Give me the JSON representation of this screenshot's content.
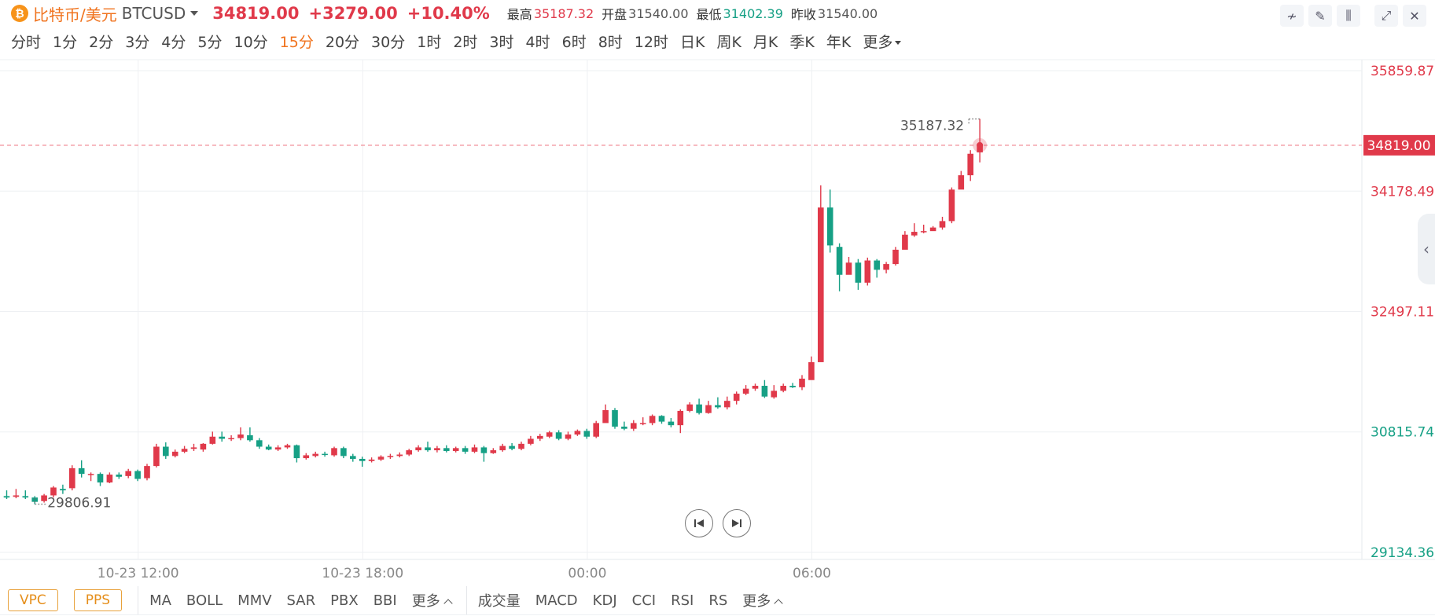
{
  "header": {
    "coin_icon": "bitcoin-icon",
    "coin_glyph": "₿",
    "pair_name": "比特币/美元",
    "pair_code": "BTCUSD",
    "last_price": "34819.00",
    "change": "+3279.00",
    "change_pct": "+10.40%",
    "high_label": "最高",
    "high": "35187.32",
    "open_label": "开盘",
    "open": "31540.00",
    "low_label": "最低",
    "low": "31402.39",
    "prev_close_label": "昨收",
    "prev_close": "31540.00"
  },
  "toolbar": {
    "tools": [
      {
        "name": "line-tool-icon",
        "glyph": "≁"
      },
      {
        "name": "pencil-icon",
        "glyph": "✎"
      },
      {
        "name": "candlestick-icon",
        "glyph": "⫼"
      }
    ],
    "window": [
      {
        "name": "expand-icon",
        "glyph": "⤢"
      },
      {
        "name": "close-icon",
        "glyph": "✕"
      }
    ]
  },
  "periods": [
    "分时",
    "1分",
    "2分",
    "3分",
    "4分",
    "5分",
    "10分",
    "15分",
    "20分",
    "30分",
    "1时",
    "2时",
    "3时",
    "4时",
    "6时",
    "8时",
    "12时",
    "日K",
    "周K",
    "月K",
    "季K",
    "年K"
  ],
  "active_period": "15分",
  "more_label": "更多",
  "colors": {
    "up": "#e0394a",
    "down": "#16a085",
    "accent": "#f0731e",
    "grid": "#eef0f3"
  },
  "indicators": {
    "pills": [
      "VPC",
      "PPS"
    ],
    "main": [
      "MA",
      "BOLL",
      "MMV",
      "SAR",
      "PBX",
      "BBI"
    ],
    "main_more": "更多",
    "sub": [
      "成交量",
      "MACD",
      "KDJ",
      "CCI",
      "RSI",
      "RS"
    ],
    "sub_more": "更多"
  },
  "chart_data": {
    "type": "candlestick",
    "y_ticks": [
      "35859.87",
      "34178.49",
      "32497.11",
      "30815.74",
      "29134.36"
    ],
    "y_tick_values": [
      35859.87,
      34178.49,
      32497.11,
      30815.74,
      29134.36
    ],
    "ylim": [
      29134.36,
      35859.87
    ],
    "x_ticks": [
      "10-23 12:00",
      "10-23 18:00",
      "00:00",
      "06:00"
    ],
    "x_tick_index": [
      14,
      38,
      62,
      86
    ],
    "current_price": "34819.00",
    "current_value": 34819.0,
    "max_label": "35187.32",
    "max_value": 35187.32,
    "min_label": "29806.91",
    "min_value": 29806.91,
    "grid": true,
    "candles": [
      [
        29920,
        29900,
        30000,
        29880
      ],
      [
        29910,
        29930,
        30020,
        29890
      ],
      [
        29920,
        29900,
        30000,
        29880
      ],
      [
        29900,
        29840,
        29920,
        29806.91
      ],
      [
        29850,
        29930,
        29950,
        29830
      ],
      [
        29930,
        30040,
        30060,
        29900
      ],
      [
        30020,
        30000,
        30080,
        29950
      ],
      [
        30030,
        30310,
        30350,
        30000
      ],
      [
        30310,
        30230,
        30420,
        30180
      ],
      [
        30230,
        30230,
        30250,
        30130
      ],
      [
        30230,
        30110,
        30250,
        30060
      ],
      [
        30110,
        30220,
        30250,
        30100
      ],
      [
        30220,
        30190,
        30250,
        30160
      ],
      [
        30200,
        30270,
        30300,
        30170
      ],
      [
        30270,
        30160,
        30290,
        30130
      ],
      [
        30170,
        30340,
        30370,
        30140
      ],
      [
        30340,
        30610,
        30650,
        30320
      ],
      [
        30610,
        30480,
        30670,
        30440
      ],
      [
        30480,
        30540,
        30570,
        30460
      ],
      [
        30540,
        30580,
        30620,
        30520
      ],
      [
        30580,
        30600,
        30650,
        30550
      ],
      [
        30570,
        30650,
        30660,
        30540
      ],
      [
        30650,
        30750,
        30820,
        30640
      ],
      [
        30750,
        30720,
        30820,
        30680
      ],
      [
        30720,
        30730,
        30770,
        30690
      ],
      [
        30730,
        30780,
        30880,
        30700
      ],
      [
        30770,
        30700,
        30880,
        30680
      ],
      [
        30700,
        30610,
        30730,
        30580
      ],
      [
        30610,
        30570,
        30640,
        30560
      ],
      [
        30570,
        30600,
        30630,
        30550
      ],
      [
        30600,
        30630,
        30650,
        30580
      ],
      [
        30630,
        30450,
        30640,
        30390
      ],
      [
        30450,
        30490,
        30520,
        30430
      ],
      [
        30480,
        30510,
        30540,
        30460
      ],
      [
        30510,
        30500,
        30540,
        30470
      ],
      [
        30490,
        30590,
        30610,
        30470
      ],
      [
        30590,
        30480,
        30610,
        30450
      ],
      [
        30480,
        30440,
        30510,
        30400
      ],
      [
        30440,
        30410,
        30470,
        30330
      ],
      [
        30410,
        30430,
        30460,
        30390
      ],
      [
        30430,
        30470,
        30490,
        30410
      ],
      [
        30470,
        30480,
        30510,
        30440
      ],
      [
        30480,
        30500,
        30530,
        30460
      ],
      [
        30500,
        30560,
        30580,
        30480
      ],
      [
        30560,
        30600,
        30630,
        30540
      ],
      [
        30600,
        30560,
        30680,
        30540
      ],
      [
        30560,
        30590,
        30620,
        30530
      ],
      [
        30590,
        30550,
        30630,
        30530
      ],
      [
        30550,
        30590,
        30610,
        30530
      ],
      [
        30590,
        30540,
        30620,
        30510
      ],
      [
        30540,
        30600,
        30640,
        30520
      ],
      [
        30600,
        30520,
        30620,
        30400
      ],
      [
        30520,
        30560,
        30590,
        30510
      ],
      [
        30560,
        30620,
        30650,
        30540
      ],
      [
        30620,
        30580,
        30660,
        30560
      ],
      [
        30580,
        30650,
        30680,
        30560
      ],
      [
        30650,
        30720,
        30760,
        30630
      ],
      [
        30720,
        30760,
        30790,
        30690
      ],
      [
        30750,
        30810,
        30830,
        30730
      ],
      [
        30810,
        30720,
        30840,
        30700
      ],
      [
        30720,
        30780,
        30820,
        30700
      ],
      [
        30780,
        30830,
        30850,
        30760
      ],
      [
        30830,
        30750,
        30860,
        30720
      ],
      [
        30750,
        30940,
        30970,
        30730
      ],
      [
        30940,
        31120,
        31200,
        31060
      ],
      [
        31120,
        30890,
        31150,
        30860
      ],
      [
        30890,
        30860,
        30960,
        30840
      ],
      [
        30860,
        30940,
        30980,
        30830
      ],
      [
        30940,
        30940,
        31020,
        30910
      ],
      [
        30940,
        31040,
        31060,
        30910
      ],
      [
        31040,
        30960,
        31050,
        30930
      ],
      [
        30960,
        30910,
        31010,
        30880
      ],
      [
        30910,
        31110,
        31130,
        30800
      ],
      [
        31110,
        31200,
        31230,
        31090
      ],
      [
        31200,
        31080,
        31280,
        31060
      ],
      [
        31080,
        31190,
        31250,
        31070
      ],
      [
        31190,
        31160,
        31300,
        31140
      ],
      [
        31160,
        31250,
        31310,
        31130
      ],
      [
        31250,
        31350,
        31380,
        31200
      ],
      [
        31350,
        31420,
        31470,
        31330
      ],
      [
        31420,
        31460,
        31490,
        31390
      ],
      [
        31460,
        31310,
        31540,
        31290
      ],
      [
        31300,
        31390,
        31470,
        31280
      ],
      [
        31390,
        31460,
        31490,
        31370
      ],
      [
        31460,
        31440,
        31500,
        31430
      ],
      [
        31440,
        31560,
        31610,
        31400
      ],
      [
        31540,
        31790,
        31870,
        31690
      ],
      [
        31790,
        33950,
        34260,
        31870
      ],
      [
        33950,
        33420,
        34200,
        33320
      ],
      [
        33400,
        33010,
        33450,
        32780
      ],
      [
        33010,
        33180,
        33260,
        33070
      ],
      [
        33180,
        32900,
        33230,
        32800
      ],
      [
        32900,
        33210,
        33250,
        32860
      ],
      [
        33210,
        33080,
        33230,
        32970
      ],
      [
        33080,
        33160,
        33190,
        33030
      ],
      [
        33160,
        33360,
        33400,
        33140
      ],
      [
        33360,
        33570,
        33620,
        33530
      ],
      [
        33560,
        33610,
        33730,
        33540
      ],
      [
        33620,
        33620,
        33710,
        33590
      ],
      [
        33620,
        33670,
        33690,
        33630
      ],
      [
        33670,
        33760,
        33820,
        33640
      ],
      [
        33760,
        34200,
        34230,
        33730
      ],
      [
        34200,
        34400,
        34460,
        34280
      ],
      [
        34400,
        34700,
        34750,
        34320
      ],
      [
        34720,
        34819,
        35187.32,
        34580
      ]
    ]
  }
}
